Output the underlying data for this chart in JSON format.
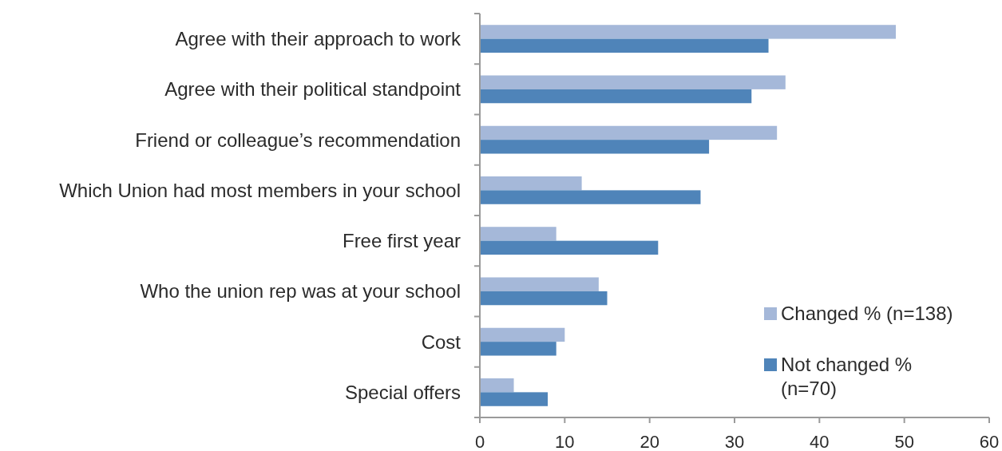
{
  "chart_data": {
    "type": "bar",
    "orientation": "horizontal",
    "categories": [
      "Agree with their approach to work",
      "Agree with their political standpoint",
      "Friend or colleague’s recommendation",
      "Which Union had most members in your school",
      "Free first year",
      "Who the union rep was at your school",
      "Cost",
      "Special offers"
    ],
    "series": [
      {
        "name": "Changed % (n=138)",
        "color": "#a5b8d9",
        "values": [
          49,
          36,
          35,
          12,
          9,
          14,
          10,
          4
        ]
      },
      {
        "name": "Not changed % (n=70)",
        "color": "#4f84b9",
        "values": [
          34,
          32,
          27,
          26,
          21,
          15,
          9,
          8
        ]
      }
    ],
    "xlim": [
      0,
      60
    ],
    "xticks": [
      0,
      10,
      20,
      30,
      40,
      50,
      60
    ],
    "legend": "bottom right"
  }
}
